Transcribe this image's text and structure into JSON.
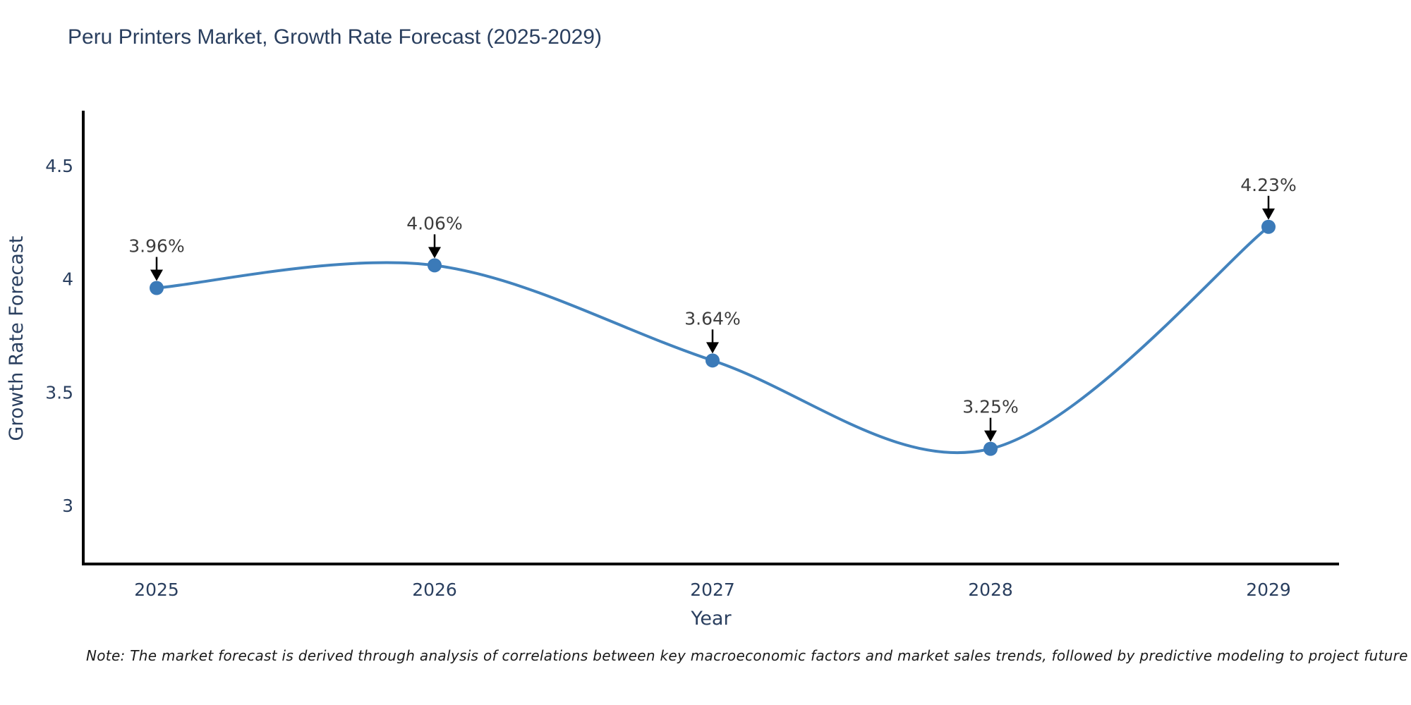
{
  "chart_data": {
    "type": "line",
    "title": "Peru Printers Market, Growth Rate Forecast (2025-2029)",
    "xlabel": "Year",
    "ylabel": "Growth Rate Forecast",
    "categories": [
      2025,
      2026,
      2027,
      2028,
      2029
    ],
    "values": [
      3.96,
      4.06,
      3.64,
      3.25,
      4.23
    ],
    "point_labels": [
      "3.96%",
      "4.06%",
      "3.64%",
      "3.25%",
      "4.23%"
    ],
    "yticks": [
      3,
      3.5,
      4,
      4.5
    ],
    "ylim": [
      2.74,
      4.73
    ],
    "xlim": [
      2024.74,
      2029.25
    ],
    "grid": false,
    "legend": "none",
    "smooth": true,
    "line_color": "#4383bd",
    "marker_color": "#3b7ab8",
    "axis_color": "#000000",
    "text_color": "#2a3f5f",
    "annotation_text_color": "#3d3d3d",
    "annotation_arrow_color": "#000000",
    "note": "Note: The market forecast is derived through analysis of correlations between key macroeconomic factors and market sales trends, followed by predictive modeling to project future sales"
  }
}
